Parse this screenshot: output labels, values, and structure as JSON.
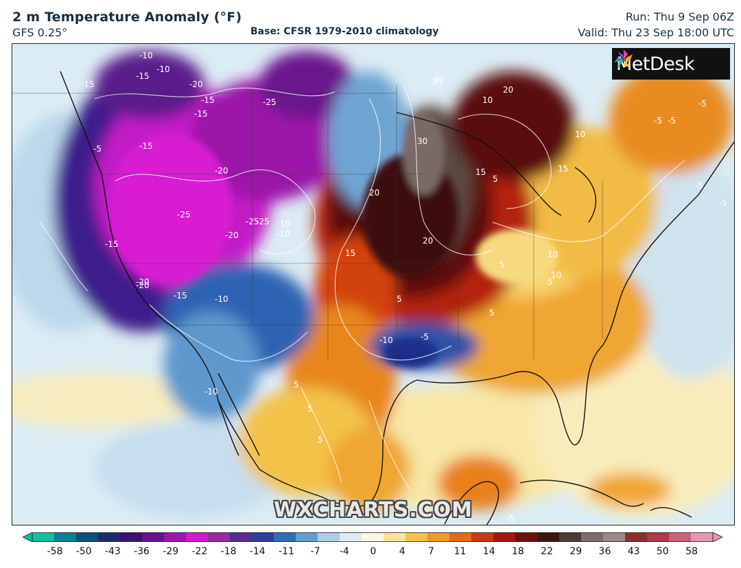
{
  "header": {
    "title": "2 m Temperature Anomaly (°F)",
    "model": "GFS 0.25°",
    "base": "Base: CFSR 1979-2010 climatology",
    "run": "Run: Thu 9 Sep 06Z",
    "valid": "Valid: Thu 23 Sep 18:00 UTC"
  },
  "logo": {
    "text": "MetDesk",
    "icon": "pinwheel-icon"
  },
  "watermark": "WXCHARTS.COM",
  "colorbar": {
    "ticks": [
      "-58",
      "-50",
      "-43",
      "-36",
      "-29",
      "-22",
      "-18",
      "-14",
      "-11",
      "-7",
      "-4",
      "0",
      "4",
      "7",
      "11",
      "14",
      "18",
      "22",
      "29",
      "36",
      "43",
      "50",
      "58"
    ],
    "colors": [
      "#0fbf9f",
      "#0a7f96",
      "#0b4f7e",
      "#1d2a6e",
      "#3a1278",
      "#6a1290",
      "#a015b0",
      "#d21cd0",
      "#9a2aa8",
      "#5a2a9a",
      "#2f3da0",
      "#2d6fb9",
      "#5f9fd2",
      "#a9cfe6",
      "#dcebf4",
      "#fbf6e2",
      "#f8e29a",
      "#f3c24a",
      "#ec9a2a",
      "#e46a16",
      "#cf3a10",
      "#a8170e",
      "#6d0f0e",
      "#3f1410",
      "#4d3a34",
      "#7c6e6a",
      "#9a8a88",
      "#8f3030",
      "#b2384a",
      "#d0607a",
      "#e895b0"
    ]
  },
  "contour_labels": [
    "-10",
    "-15",
    "-10",
    "-15",
    "-15",
    "-20",
    "-15",
    "-25",
    "-15",
    "-20",
    "-25",
    "-20",
    "-25",
    "-20",
    "-25",
    "-5",
    "-15",
    "-20",
    "-15",
    "-10",
    "-10",
    "10",
    "-10",
    "-5",
    "15",
    "-25",
    "25",
    "30",
    "20",
    "20",
    "10",
    "15",
    "20",
    "15",
    "10",
    "10",
    "5",
    "5",
    "10",
    "5",
    "5",
    "5",
    "5",
    "5",
    "5",
    "-5",
    "-5",
    "-5",
    "-5",
    "-5",
    "-5",
    "-10"
  ],
  "colors": {
    "text": "#17303f",
    "background": "#ffffff"
  }
}
